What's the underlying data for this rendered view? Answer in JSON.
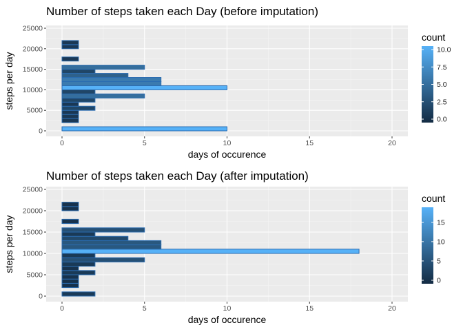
{
  "chart_data": [
    {
      "type": "bar",
      "orientation": "horizontal",
      "title": "Number of steps taken each Day (before imputation)",
      "xlabel": "days of occurence",
      "ylabel": "steps per day",
      "xlim": [
        0,
        20
      ],
      "ylim": [
        0,
        25000
      ],
      "x_ticks": [
        "0",
        "5",
        "10",
        "15",
        "20"
      ],
      "y_ticks": [
        "0",
        "5000",
        "10000",
        "15000",
        "20000",
        "25000"
      ],
      "bin_width": 1000,
      "bins_start": [
        0,
        1000,
        2000,
        3000,
        4000,
        5000,
        6000,
        7000,
        8000,
        9000,
        10000,
        11000,
        12000,
        13000,
        14000,
        15000,
        16000,
        17000,
        18000,
        19000,
        20000,
        21000,
        22000,
        23000,
        24000
      ],
      "values": [
        10,
        0,
        1,
        1,
        1,
        2,
        1,
        2,
        5,
        2,
        10,
        6,
        6,
        4,
        2,
        5,
        0,
        1,
        0,
        0,
        1,
        1,
        0,
        0,
        0
      ],
      "legend": {
        "title": "count",
        "ticks": [
          "0.0",
          "2.5",
          "5.0",
          "7.5",
          "10.0"
        ],
        "range": [
          0,
          10
        ],
        "position": "right"
      },
      "grid": true
    },
    {
      "type": "bar",
      "orientation": "horizontal",
      "title": "Number of steps taken each Day (after imputation)",
      "xlabel": "days of occurence",
      "ylabel": "steps per day",
      "xlim": [
        0,
        20
      ],
      "ylim": [
        0,
        25000
      ],
      "x_ticks": [
        "0",
        "5",
        "10",
        "15",
        "20"
      ],
      "y_ticks": [
        "0",
        "5000",
        "10000",
        "15000",
        "20000",
        "25000"
      ],
      "bin_width": 1000,
      "bins_start": [
        0,
        1000,
        2000,
        3000,
        4000,
        5000,
        6000,
        7000,
        8000,
        9000,
        10000,
        11000,
        12000,
        13000,
        14000,
        15000,
        16000,
        17000,
        18000,
        19000,
        20000,
        21000,
        22000,
        23000,
        24000
      ],
      "values": [
        2,
        0,
        1,
        1,
        1,
        2,
        1,
        2,
        5,
        2,
        18,
        6,
        6,
        4,
        2,
        5,
        0,
        1,
        0,
        0,
        1,
        1,
        0,
        0,
        0
      ],
      "legend": {
        "title": "count",
        "ticks": [
          "0",
          "5",
          "10",
          "15"
        ],
        "range": [
          0,
          18
        ],
        "position": "right"
      },
      "grid": true
    }
  ],
  "colors": {
    "panel": "#ebebeb",
    "grid_major": "#ffffff",
    "grid_minor": "#f5f5f5",
    "low": "#132b43",
    "high": "#56b1f7",
    "outline": "#2b6cb0",
    "text": "#222222",
    "tick_text": "#4d4d4d"
  }
}
